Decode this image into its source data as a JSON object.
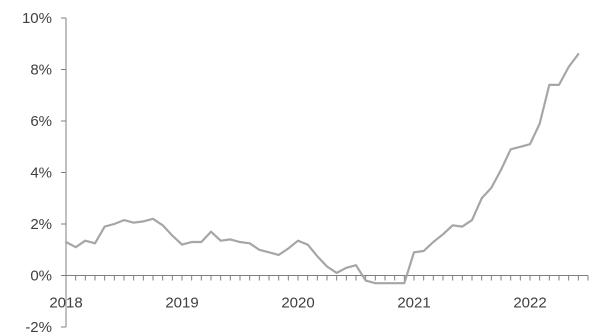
{
  "chart_data": {
    "type": "line",
    "title": "",
    "xlabel": "",
    "ylabel": "",
    "x_tick_labels": [
      "2018",
      "2019",
      "2020",
      "2021",
      "2022"
    ],
    "y_tick_labels": [
      "-2%",
      "0%",
      "2%",
      "4%",
      "6%",
      "8%",
      "10%"
    ],
    "ylim": [
      -2,
      10
    ],
    "xlim": [
      "2018-01",
      "2022-06"
    ],
    "grid": false,
    "legend": "none",
    "colors": {
      "line": "#a6a6a6",
      "axis": "#7f7f7f",
      "text": "#404040"
    },
    "series": [
      {
        "x": [
          "2018-01",
          "2018-02",
          "2018-03",
          "2018-04",
          "2018-05",
          "2018-06",
          "2018-07",
          "2018-08",
          "2018-09",
          "2018-10",
          "2018-11",
          "2018-12",
          "2019-01",
          "2019-02",
          "2019-03",
          "2019-04",
          "2019-05",
          "2019-06",
          "2019-07",
          "2019-08",
          "2019-09",
          "2019-10",
          "2019-11",
          "2019-12",
          "2020-01",
          "2020-02",
          "2020-03",
          "2020-04",
          "2020-05",
          "2020-06",
          "2020-07",
          "2020-08",
          "2020-09",
          "2020-10",
          "2020-11",
          "2020-12",
          "2021-01",
          "2021-02",
          "2021-03",
          "2021-04",
          "2021-05",
          "2021-06",
          "2021-07",
          "2021-08",
          "2021-09",
          "2021-10",
          "2021-11",
          "2021-12",
          "2022-01",
          "2022-02",
          "2022-03",
          "2022-04",
          "2022-05",
          "2022-06"
        ],
        "values": [
          1.3,
          1.1,
          1.35,
          1.25,
          1.9,
          2.0,
          2.15,
          2.05,
          2.1,
          2.2,
          1.95,
          1.55,
          1.2,
          1.3,
          1.3,
          1.7,
          1.35,
          1.4,
          1.3,
          1.25,
          1.0,
          0.9,
          0.8,
          1.05,
          1.35,
          1.2,
          0.75,
          0.35,
          0.1,
          0.3,
          0.4,
          -0.2,
          -0.3,
          -0.3,
          -0.3,
          -0.3,
          0.9,
          0.95,
          1.3,
          1.6,
          1.95,
          1.9,
          2.15,
          3.0,
          3.4,
          4.1,
          4.9,
          5.0,
          5.1,
          5.9,
          7.4,
          7.4,
          8.1,
          8.6
        ]
      }
    ]
  }
}
